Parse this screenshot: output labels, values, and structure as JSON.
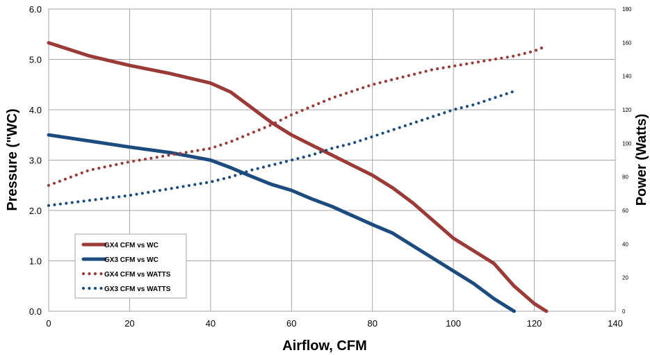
{
  "chart_data": {
    "type": "line",
    "title": "",
    "xlabel": "Airflow, CFM",
    "ylabel": "Pressure (\"WC)",
    "y2label": "Power (Watts)",
    "xlim": [
      0,
      140
    ],
    "ylim": [
      0,
      6
    ],
    "y2lim": [
      0,
      180
    ],
    "x_ticks": [
      "0",
      "20",
      "40",
      "60",
      "80",
      "100",
      "120",
      "140"
    ],
    "y_ticks": [
      "0.0",
      "1.0",
      "2.0",
      "3.0",
      "4.0",
      "5.0",
      "6.0"
    ],
    "y2_ticks": [
      "0",
      "20",
      "40",
      "60",
      "80",
      "100",
      "120",
      "140",
      "160",
      "180"
    ],
    "grid": true,
    "legend_position": "bottom-left",
    "colors": {
      "gx4": "#9B3A36",
      "gx3": "#1C4C7F",
      "grid": "#a6a6a6"
    },
    "series": [
      {
        "name": "GX4 CFM vs WC",
        "axis": "left",
        "style": "solid",
        "color": "#9B3A36",
        "x": [
          0,
          10,
          20,
          30,
          40,
          45,
          50,
          55,
          60,
          65,
          70,
          75,
          80,
          85,
          90,
          95,
          100,
          105,
          110,
          115,
          120,
          123
        ],
        "y": [
          5.33,
          5.07,
          4.88,
          4.72,
          4.53,
          4.35,
          4.05,
          3.75,
          3.5,
          3.3,
          3.1,
          2.9,
          2.7,
          2.45,
          2.15,
          1.8,
          1.45,
          1.2,
          0.95,
          0.5,
          0.15,
          0.0
        ]
      },
      {
        "name": "GX3 CFM vs WC",
        "axis": "left",
        "style": "solid",
        "color": "#1C4C7F",
        "x": [
          0,
          10,
          20,
          30,
          40,
          45,
          50,
          55,
          60,
          65,
          70,
          75,
          80,
          85,
          90,
          95,
          100,
          105,
          110,
          113,
          115
        ],
        "y": [
          3.5,
          3.38,
          3.26,
          3.15,
          3.0,
          2.85,
          2.68,
          2.52,
          2.4,
          2.23,
          2.08,
          1.9,
          1.72,
          1.55,
          1.3,
          1.05,
          0.8,
          0.55,
          0.25,
          0.1,
          0.0
        ]
      },
      {
        "name": "GX4 CFM vs WATTS",
        "axis": "right",
        "style": "dotted",
        "color": "#9B3A36",
        "x": [
          0,
          10,
          20,
          30,
          40,
          45,
          50,
          55,
          60,
          65,
          70,
          75,
          80,
          85,
          90,
          95,
          100,
          105,
          110,
          115,
          120,
          123
        ],
        "y": [
          75,
          84,
          89,
          93,
          97,
          101,
          106,
          111,
          117,
          122,
          127,
          131,
          135,
          138,
          141,
          144,
          146,
          148,
          150,
          152,
          155,
          158
        ]
      },
      {
        "name": "GX3 CFM vs WATTS",
        "axis": "right",
        "style": "dotted",
        "color": "#1C4C7F",
        "x": [
          0,
          10,
          20,
          30,
          40,
          45,
          50,
          55,
          60,
          65,
          70,
          75,
          80,
          85,
          90,
          95,
          100,
          105,
          110,
          115
        ],
        "y": [
          63,
          66,
          69,
          73,
          77,
          80,
          84,
          87,
          90,
          93,
          97,
          100,
          104,
          108,
          112,
          116,
          120,
          123,
          127,
          131
        ]
      }
    ]
  }
}
